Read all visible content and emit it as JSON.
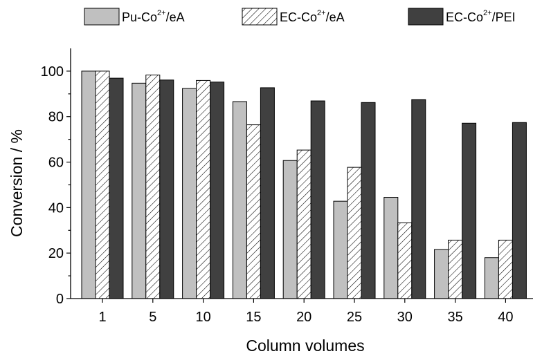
{
  "chart_data": {
    "type": "bar",
    "xlabel": "Column volumes",
    "ylabel": "Conversion / %",
    "ylim": [
      0,
      110
    ],
    "yticks": [
      0,
      20,
      40,
      60,
      80,
      100
    ],
    "yticks_labels": [
      "0",
      "20",
      "40",
      "60",
      "80",
      "100"
    ],
    "minor_ytick_step": 10,
    "grid": false,
    "legend_position": "top",
    "categories": [
      "1",
      "5",
      "10",
      "15",
      "20",
      "25",
      "30",
      "35",
      "40"
    ],
    "series": [
      {
        "name": "Pu-Co2+/eA",
        "legend": {
          "base": "Pu-Co",
          "sup": "2+",
          "suffix": "/eA"
        },
        "style": "solid",
        "fill": "#c0c0c0",
        "values": [
          100,
          94.7,
          92.4,
          86.6,
          60.7,
          42.8,
          44.5,
          21.6,
          18.0
        ]
      },
      {
        "name": "EC-Co2+/eA",
        "legend": {
          "base": "EC-Co",
          "sup": "2+",
          "suffix": "/eA"
        },
        "style": "hatched",
        "fill": "#ffffff",
        "values": [
          100,
          98.3,
          95.9,
          76.4,
          65.3,
          57.7,
          33.3,
          25.7,
          25.7
        ]
      },
      {
        "name": "EC-Co2+/PEI",
        "legend": {
          "base": "EC-Co",
          "sup": "2+",
          "suffix": "/PEI"
        },
        "style": "solid",
        "fill": "#404040",
        "values": [
          96.9,
          96.1,
          95.2,
          92.7,
          86.9,
          86.2,
          87.5,
          77.1,
          77.4
        ]
      }
    ]
  }
}
